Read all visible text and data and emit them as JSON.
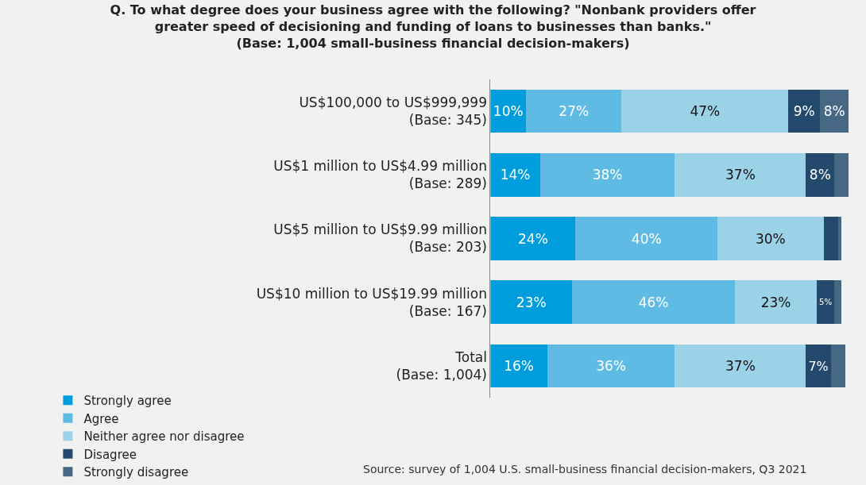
{
  "chart_data": {
    "type": "bar",
    "orientation": "horizontal",
    "stacked": true,
    "title": "Q. To what degree does your business agree with the following? \"Nonbank providers offer greater speed of decisioning and funding of loans to businesses than banks.\"\n(Base: 1,004 small-business financial decision-makers)",
    "categories": [
      "US$100,000 to US$999,999\n(Base: 345)",
      "US$1 million to US$4.99 million\n(Base: 289)",
      "US$5 million to US$9.99 million\n(Base: 203)",
      "US$10 million to US$19.99 million\n(Base: 167)",
      "Total\n(Base: 1,004)"
    ],
    "series": [
      {
        "name": "Strongly agree",
        "color": "#009ddc",
        "values": [
          10,
          14,
          24,
          23,
          16
        ],
        "value_labels": [
          "10%",
          "14%",
          "24%",
          "23%",
          "16%"
        ]
      },
      {
        "name": "Agree",
        "color": "#5fbbe3",
        "values": [
          27,
          38,
          40,
          46,
          36
        ],
        "value_labels": [
          "27%",
          "38%",
          "40%",
          "46%",
          "36%"
        ]
      },
      {
        "name": "Neither agree nor disagree",
        "color": "#9cd2e8",
        "values": [
          47,
          37,
          30,
          23,
          37
        ],
        "value_labels": [
          "47%",
          "37%",
          "30%",
          "23%",
          "37%"
        ]
      },
      {
        "name": "Disagree",
        "color": "#23496d",
        "values": [
          9,
          8,
          4,
          5,
          7
        ],
        "value_labels": [
          "9%",
          "8%",
          null,
          "5%",
          "7%"
        ]
      },
      {
        "name": "Strongly disagree",
        "color": "#476884",
        "values": [
          8,
          4,
          1,
          2,
          4
        ],
        "value_labels": [
          "8%",
          null,
          null,
          null,
          null
        ]
      }
    ],
    "xlim": [
      0,
      101
    ],
    "tick_labels": "y",
    "grid": false,
    "legend": "bottom",
    "annotations": [
      "Source: survey of 1,004 U.S. small-business financial decision-makers, Q3 2021"
    ]
  }
}
